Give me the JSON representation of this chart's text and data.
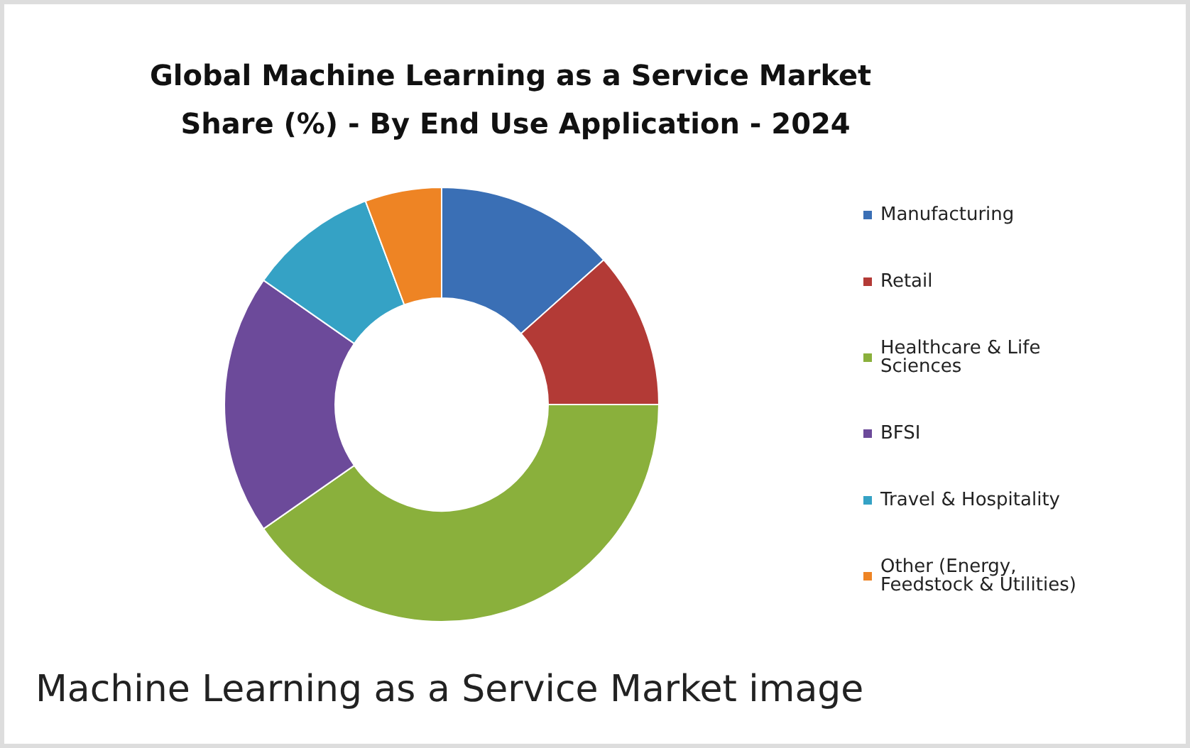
{
  "chart_data": {
    "type": "donut",
    "title": "Global Machine Learning as a Service Market Share (%) - By End Use Application - 2024",
    "categories": [
      "Manufacturing",
      "Retail",
      "Healthcare & Life Sciences",
      "BFSI",
      "Travel & Hospitality",
      "Other (Energy, Feedstock & Utilities)"
    ],
    "values": [
      13.4,
      11.6,
      40.3,
      19.4,
      9.6,
      5.7
    ],
    "colors": [
      "#3a6fb5",
      "#b33a36",
      "#8ab03c",
      "#6c4a9a",
      "#35a2c5",
      "#ee8424"
    ],
    "legend": "right",
    "annotations": [
      "Machine Learning as a Service Market image"
    ]
  }
}
